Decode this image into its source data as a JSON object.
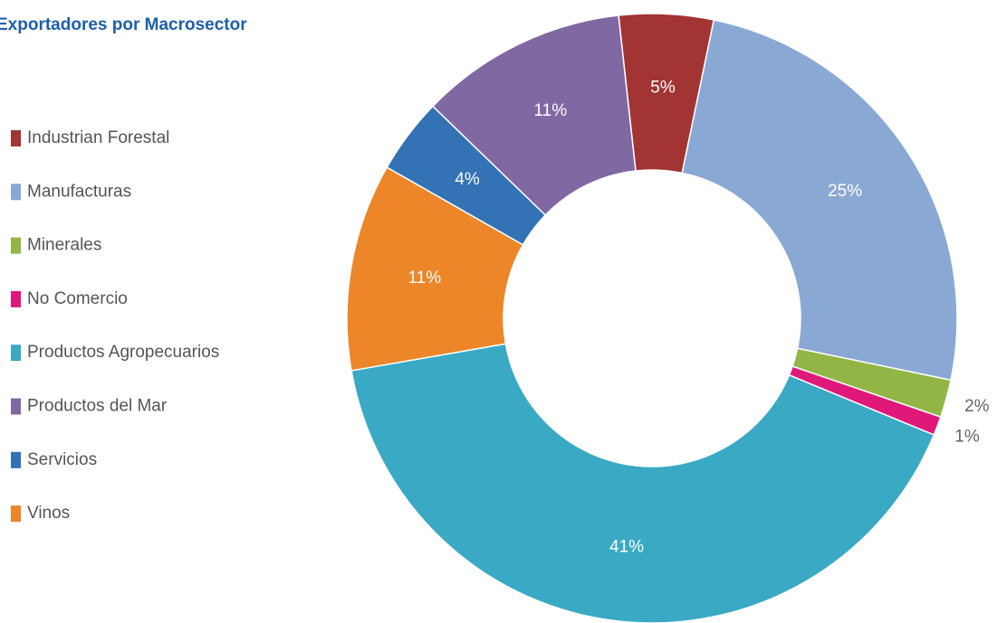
{
  "chart_data": {
    "type": "donut",
    "title": "Exportadores por Macrosector",
    "categories": [
      "Industrian Forestal",
      "Manufacturas",
      "Minerales",
      "No Comercio",
      "Productos Agropecuarios",
      "Productos del Mar",
      "Servicios",
      "Vinos"
    ],
    "values": [
      5,
      25,
      2,
      1,
      41,
      11,
      4,
      11
    ],
    "value_labels": [
      "5%",
      "25%",
      "2%",
      "1%",
      "41%",
      "11%",
      "4%",
      "11%"
    ],
    "colors": [
      "#a33434",
      "#8aa8d4",
      "#93b546",
      "#e0187a",
      "#3aa9c4",
      "#8068a3",
      "#3372b5",
      "#ec8629"
    ]
  }
}
